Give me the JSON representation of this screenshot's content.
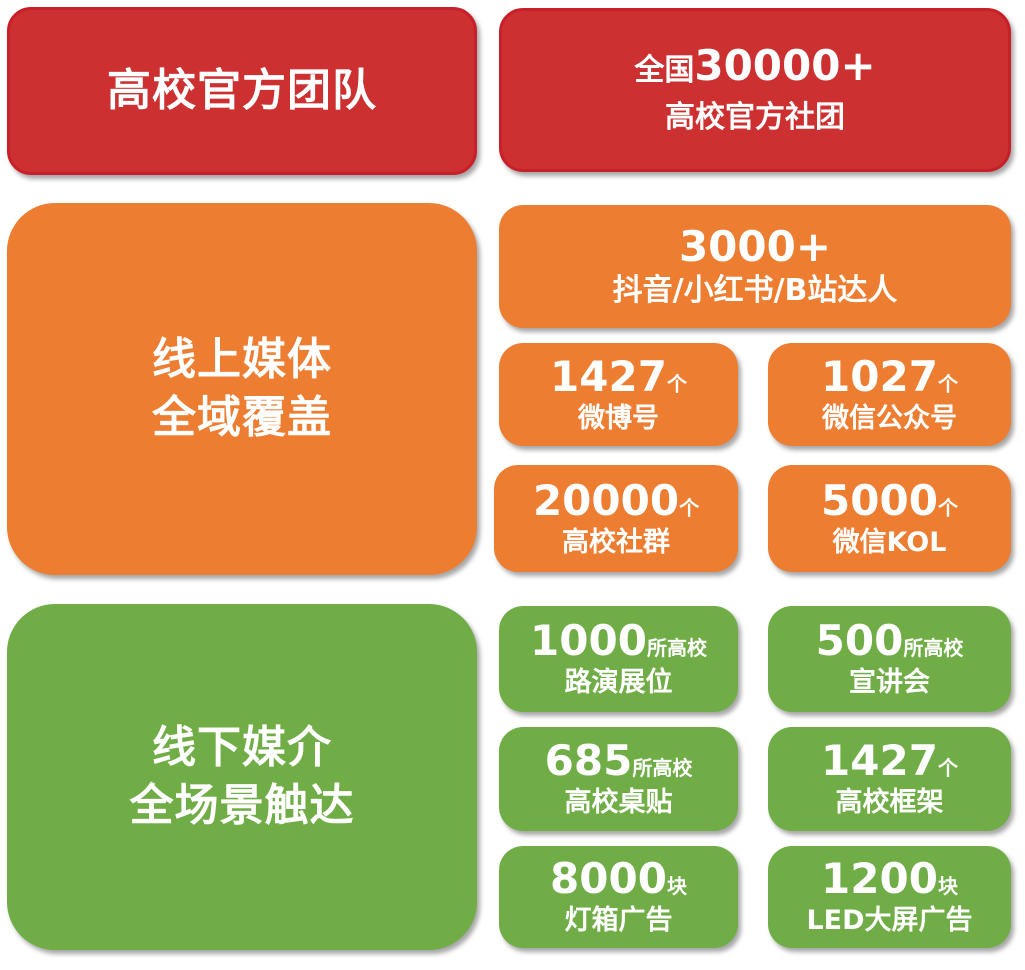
{
  "colors": {
    "red": "#CD3030",
    "orange": "#ED7D31",
    "green": "#70AD47",
    "text": "#FFFFFF"
  },
  "team": {
    "title": "高校官方团队",
    "stat": {
      "prefix": "全国",
      "number": "30000+",
      "label": "高校官方社团"
    }
  },
  "online": {
    "title_line1": "线上媒体",
    "title_line2": "全域覆盖",
    "top": {
      "number": "3000+",
      "label": "抖音/小红书/B站达人"
    },
    "stats": [
      {
        "number": "1427",
        "unit": "个",
        "label": "微博号"
      },
      {
        "number": "1027",
        "unit": "个",
        "label": "微信公众号"
      },
      {
        "number": "20000",
        "unit": "个",
        "label": "高校社群"
      },
      {
        "number": "5000",
        "unit": "个",
        "label": "微信KOL"
      }
    ]
  },
  "offline": {
    "title_line1": "线下媒介",
    "title_line2": "全场景触达",
    "stats": [
      {
        "number": "1000",
        "unit": "所高校",
        "label": "路演展位"
      },
      {
        "number": "500",
        "unit": "所高校",
        "label": "宣讲会"
      },
      {
        "number": "685",
        "unit": "所高校",
        "label": "高校桌贴"
      },
      {
        "number": "1427",
        "unit": "个",
        "label": "高校框架"
      },
      {
        "number": "8000",
        "unit": "块",
        "label": "灯箱广告"
      },
      {
        "number": "1200",
        "unit": "块",
        "label": "LED大屏广告"
      }
    ]
  }
}
